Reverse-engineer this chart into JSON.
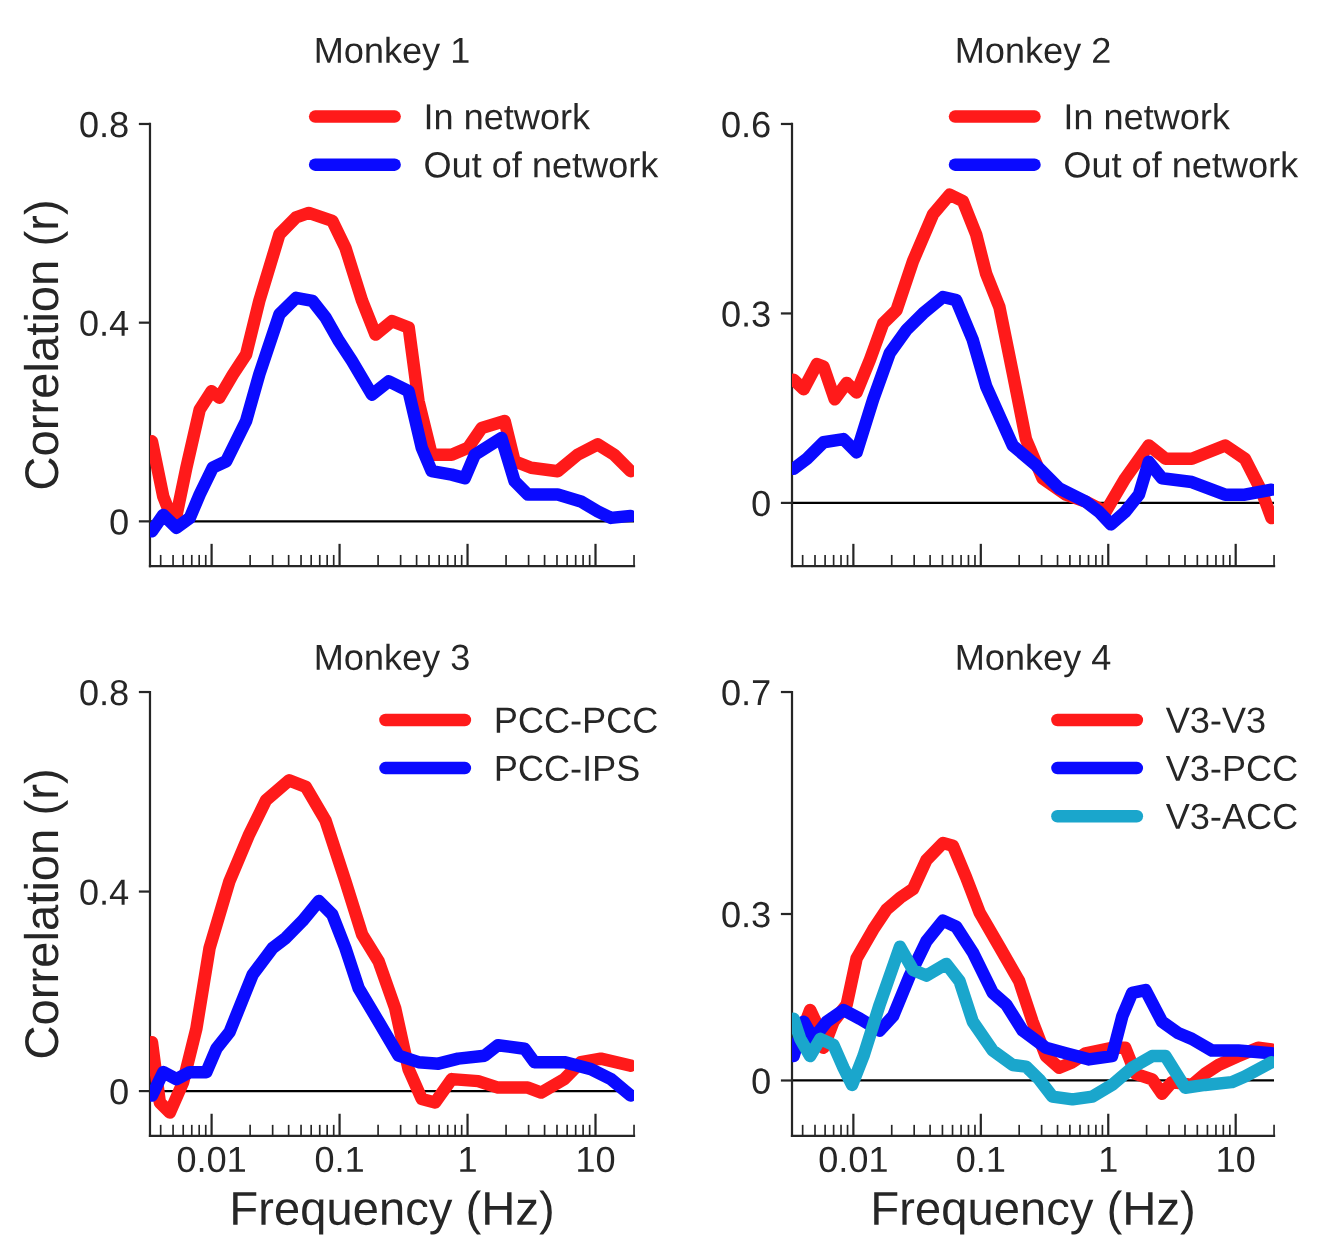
{
  "chart_data": [
    {
      "type": "line",
      "title": "Monkey 1",
      "ylabel": "Correlation (r)",
      "log": "x",
      "xlim": [
        0.0033,
        20
      ],
      "xticks": [
        0.01,
        0.1,
        1,
        10
      ],
      "ylim": [
        -0.09,
        0.8
      ],
      "yticks": [
        0,
        0.4,
        0.8
      ],
      "tick_labels": "y",
      "legend": "top right",
      "grid": false,
      "ref_lines": [
        {
          "axis": "y",
          "value": 0,
          "color": "#000000"
        }
      ],
      "series": [
        {
          "name": "In network",
          "color": "#ff1a1a",
          "x": [
            0.00342,
            0.00419,
            0.00513,
            0.00635,
            0.00807,
            0.01,
            0.0115,
            0.0147,
            0.0186,
            0.0236,
            0.0339,
            0.0457,
            0.0575,
            0.0877,
            0.111,
            0.15,
            0.191,
            0.257,
            0.347,
            0.414,
            0.525,
            0.752,
            1.01,
            1.29,
            1.95,
            2.33,
            3.14,
            5.07,
            7.24,
            10.4,
            14.0,
            18.8
          ],
          "values": [
            0.161,
            0.05,
            -0.007,
            0.108,
            0.225,
            0.262,
            0.249,
            0.296,
            0.336,
            0.444,
            0.578,
            0.612,
            0.621,
            0.605,
            0.551,
            0.444,
            0.376,
            0.403,
            0.39,
            0.242,
            0.134,
            0.134,
            0.148,
            0.188,
            0.202,
            0.121,
            0.108,
            0.101,
            0.134,
            0.155,
            0.134,
            0.101
          ]
        },
        {
          "name": "Out of network",
          "color": "#0a0aff",
          "x": [
            0.00342,
            0.00419,
            0.00531,
            0.00676,
            0.00807,
            0.0102,
            0.013,
            0.0186,
            0.0236,
            0.0339,
            0.0457,
            0.0614,
            0.0778,
            0.0989,
            0.125,
            0.179,
            0.242,
            0.346,
            0.439,
            0.525,
            0.752,
            0.953,
            1.14,
            1.84,
            2.33,
            2.96,
            5.07,
            7.69,
            10.4,
            13.2,
            18.8
          ],
          "values": [
            -0.02,
            0.013,
            -0.013,
            0.007,
            0.054,
            0.108,
            0.121,
            0.202,
            0.296,
            0.417,
            0.45,
            0.444,
            0.41,
            0.363,
            0.323,
            0.255,
            0.282,
            0.262,
            0.148,
            0.101,
            0.094,
            0.087,
            0.134,
            0.168,
            0.081,
            0.054,
            0.054,
            0.04,
            0.02,
            0.007,
            0.011
          ]
        }
      ]
    },
    {
      "type": "line",
      "title": "Monkey 2",
      "log": "x",
      "xlim": [
        0.0033,
        20
      ],
      "xticks": [
        0.01,
        0.1,
        1,
        10
      ],
      "ylim": [
        -0.1,
        0.6
      ],
      "yticks": [
        0,
        0.3,
        0.6
      ],
      "tick_labels": "y",
      "legend": "top right",
      "grid": false,
      "ref_lines": [
        {
          "axis": "y",
          "value": 0,
          "color": "#000000"
        }
      ],
      "series": [
        {
          "name": "In network",
          "color": "#ff1a1a",
          "x": [
            0.0034,
            0.00407,
            0.00518,
            0.00583,
            0.00714,
            0.00887,
            0.0106,
            0.0135,
            0.0171,
            0.0218,
            0.0294,
            0.0422,
            0.0569,
            0.0723,
            0.092,
            0.11,
            0.14,
            0.178,
            0.226,
            0.305,
            0.465,
            0.665,
            0.953,
            1.36,
            2.08,
            2.81,
            4.53,
            8.26,
            11.8,
            16.0,
            19.1
          ],
          "values": [
            0.195,
            0.18,
            0.22,
            0.216,
            0.164,
            0.19,
            0.175,
            0.227,
            0.284,
            0.305,
            0.383,
            0.457,
            0.488,
            0.478,
            0.425,
            0.363,
            0.31,
            0.206,
            0.101,
            0.039,
            0.013,
            0.002,
            -0.014,
            0.039,
            0.091,
            0.07,
            0.07,
            0.091,
            0.07,
            0.018,
            -0.024
          ]
        },
        {
          "name": "Out of network",
          "color": "#0a0aff",
          "x": [
            0.0034,
            0.00432,
            0.00583,
            0.00836,
            0.0106,
            0.0143,
            0.0193,
            0.0261,
            0.0352,
            0.0505,
            0.0641,
            0.0865,
            0.11,
            0.178,
            0.27,
            0.412,
            0.665,
            0.845,
            1.05,
            1.36,
            1.74,
            2.08,
            2.64,
            4.53,
            8.26,
            11.8,
            19.1
          ],
          "values": [
            0.054,
            0.07,
            0.096,
            0.101,
            0.08,
            0.164,
            0.237,
            0.274,
            0.3,
            0.326,
            0.321,
            0.258,
            0.185,
            0.091,
            0.06,
            0.023,
            0.002,
            -0.014,
            -0.034,
            -0.014,
            0.013,
            0.065,
            0.039,
            0.033,
            0.013,
            0.013,
            0.021
          ]
        }
      ]
    },
    {
      "type": "line",
      "title": "Monkey 3",
      "xlabel": "Frequency (Hz)",
      "ylabel": "Correlation (r)",
      "log": "x",
      "xlim": [
        0.0033,
        20
      ],
      "xticks": [
        0.01,
        0.1,
        1,
        10
      ],
      "ylim": [
        -0.09,
        0.8
      ],
      "yticks": [
        0,
        0.4,
        0.8
      ],
      "legend": "top right",
      "grid": false,
      "ref_lines": [
        {
          "axis": "y",
          "value": 0,
          "color": "#000000"
        }
      ],
      "series": [
        {
          "name": "PCC-PCC",
          "color": "#ff1a1a",
          "x": [
            0.00342,
            0.00394,
            0.00472,
            0.00598,
            0.0076,
            0.00964,
            0.0138,
            0.0197,
            0.0266,
            0.0404,
            0.0545,
            0.0778,
            0.111,
            0.15,
            0.202,
            0.272,
            0.346,
            0.439,
            0.557,
            0.752,
            1.21,
            1.73,
            2.96,
            3.76,
            5.7,
            7.69,
            11.0,
            18.8
          ],
          "values": [
            0.098,
            -0.023,
            -0.043,
            0.017,
            0.125,
            0.287,
            0.421,
            0.515,
            0.583,
            0.623,
            0.61,
            0.542,
            0.421,
            0.314,
            0.26,
            0.166,
            0.044,
            -0.016,
            -0.023,
            0.024,
            0.02,
            0.007,
            0.007,
            -0.003,
            0.024,
            0.058,
            0.065,
            0.051
          ]
        },
        {
          "name": "PCC-IPS",
          "color": "#0a0aff",
          "x": [
            0.00342,
            0.00419,
            0.00531,
            0.00676,
            0.0091,
            0.0109,
            0.0138,
            0.0209,
            0.03,
            0.038,
            0.0513,
            0.069,
            0.0877,
            0.111,
            0.141,
            0.202,
            0.289,
            0.414,
            0.592,
            0.845,
            1.36,
            1.73,
            2.79,
            3.33,
            5.7,
            9.2,
            13.2,
            18.8
          ],
          "values": [
            -0.009,
            0.038,
            0.024,
            0.038,
            0.038,
            0.085,
            0.118,
            0.233,
            0.287,
            0.307,
            0.341,
            0.381,
            0.354,
            0.287,
            0.206,
            0.139,
            0.071,
            0.058,
            0.055,
            0.065,
            0.071,
            0.092,
            0.085,
            0.058,
            0.058,
            0.044,
            0.024,
            -0.009
          ]
        }
      ]
    },
    {
      "type": "line",
      "title": "Monkey 4",
      "xlabel": "Frequency (Hz)",
      "log": "x",
      "xlim": [
        0.0033,
        20
      ],
      "xticks": [
        0.01,
        0.1,
        1,
        10
      ],
      "ylim": [
        -0.1,
        0.7
      ],
      "yticks": [
        0,
        0.3,
        0.7
      ],
      "legend": "top right",
      "grid": false,
      "ref_lines": [
        {
          "axis": "y",
          "value": 0,
          "color": "#000000"
        }
      ],
      "series": [
        {
          "name": "V3-V3",
          "color": "#ff1a1a",
          "x": [
            0.0034,
            0.00407,
            0.00458,
            0.00518,
            0.00583,
            0.00698,
            0.00887,
            0.0106,
            0.0143,
            0.0182,
            0.0232,
            0.0294,
            0.0374,
            0.0505,
            0.0604,
            0.0767,
            0.0977,
            0.14,
            0.2,
            0.255,
            0.324,
            0.412,
            0.524,
            0.665,
            1.07,
            1.36,
            1.64,
            2.21,
            2.64,
            3.16,
            4.53,
            5.75,
            7.33,
            10.5,
            15.0,
            19.1
          ],
          "values": [
            0.106,
            0.096,
            0.127,
            0.101,
            0.059,
            0.106,
            0.137,
            0.22,
            0.272,
            0.308,
            0.329,
            0.345,
            0.397,
            0.428,
            0.423,
            0.366,
            0.303,
            0.241,
            0.179,
            0.106,
            0.044,
            0.023,
            0.033,
            0.049,
            0.059,
            0.059,
            0.012,
            0.002,
            -0.024,
            -0.003,
            -0.008,
            0.012,
            0.028,
            0.044,
            0.059,
            0.056
          ]
        },
        {
          "name": "V3-PCC",
          "color": "#0a0aff",
          "x": [
            0.0034,
            0.00407,
            0.00486,
            0.00619,
            0.00836,
            0.0113,
            0.0161,
            0.0205,
            0.0277,
            0.0374,
            0.0505,
            0.0641,
            0.0865,
            0.124,
            0.158,
            0.213,
            0.324,
            0.465,
            0.706,
            1.07,
            1.29,
            1.54,
            1.96,
            2.64,
            3.56,
            4.53,
            6.5,
            10.5,
            19.1
          ],
          "values": [
            0.044,
            0.106,
            0.075,
            0.106,
            0.127,
            0.111,
            0.09,
            0.116,
            0.189,
            0.251,
            0.288,
            0.277,
            0.231,
            0.158,
            0.137,
            0.09,
            0.059,
            0.049,
            0.038,
            0.044,
            0.116,
            0.158,
            0.163,
            0.106,
            0.085,
            0.075,
            0.054,
            0.054,
            0.049
          ]
        },
        {
          "name": "V3-ACC",
          "color": "#1aa6cc",
          "x": [
            0.0034,
            0.00383,
            0.00458,
            0.0055,
            0.00698,
            0.00836,
            0.00977,
            0.012,
            0.0161,
            0.0232,
            0.0294,
            0.0374,
            0.0536,
            0.0681,
            0.0865,
            0.124,
            0.178,
            0.226,
            0.287,
            0.365,
            0.524,
            0.75,
            1.07,
            1.54,
            2.21,
            2.81,
            4.02,
            5.75,
            9.31,
            11.8,
            19.1
          ],
          "values": [
            0.111,
            0.075,
            0.044,
            0.075,
            0.064,
            0.023,
            -0.008,
            0.044,
            0.137,
            0.241,
            0.199,
            0.189,
            0.21,
            0.179,
            0.106,
            0.054,
            0.028,
            0.025,
            0.002,
            -0.029,
            -0.034,
            -0.029,
            -0.008,
            0.023,
            0.044,
            0.044,
            -0.013,
            -0.008,
            -0.003,
            0.007,
            0.033
          ]
        }
      ]
    }
  ]
}
